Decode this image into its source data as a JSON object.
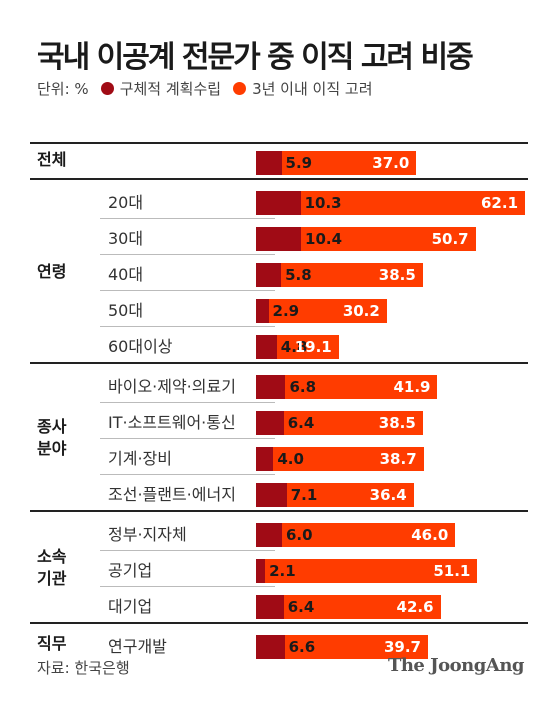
{
  "colors": {
    "series1": "#a00b15",
    "series2": "#ff3c00"
  },
  "chart_data": {
    "type": "bar",
    "orientation": "horizontal",
    "title": "국내 이공계 전문가 중 이직 고려 비중",
    "unit_label": "단위: %",
    "series": [
      {
        "name": "구체적 계획수립",
        "color": "#a00b15"
      },
      {
        "name": "3년 이내 이직 고려",
        "color": "#ff3c00"
      }
    ],
    "groups": [
      {
        "label": "전체",
        "rows": [
          {
            "label": "",
            "v1": 5.9,
            "v2": 37.0,
            "v1_text": "5.9",
            "v2_text": "37.0"
          }
        ]
      },
      {
        "label": "연령",
        "rows": [
          {
            "label": "20대",
            "v1": 10.3,
            "v2": 62.1,
            "v1_text": "10.3",
            "v2_text": "62.1"
          },
          {
            "label": "30대",
            "v1": 10.4,
            "v2": 50.7,
            "v1_text": "10.4",
            "v2_text": "50.7"
          },
          {
            "label": "40대",
            "v1": 5.8,
            "v2": 38.5,
            "v1_text": "5.8",
            "v2_text": "38.5"
          },
          {
            "label": "50대",
            "v1": 2.9,
            "v2": 30.2,
            "v1_text": "2.9",
            "v2_text": "30.2"
          },
          {
            "label": "60대이상",
            "v1": 4.8,
            "v2": 19.1,
            "v1_text": "4.8",
            "v2_text": "19.1"
          }
        ]
      },
      {
        "label": "종사\n분야",
        "rows": [
          {
            "label": "바이오·제약·의료기",
            "v1": 6.8,
            "v2": 41.9,
            "v1_text": "6.8",
            "v2_text": "41.9"
          },
          {
            "label": "IT·소프트웨어·통신",
            "v1": 6.4,
            "v2": 38.5,
            "v1_text": "6.4",
            "v2_text": "38.5"
          },
          {
            "label": "기계·장비",
            "v1": 4.0,
            "v2": 38.7,
            "v1_text": "4.0",
            "v2_text": "38.7"
          },
          {
            "label": "조선·플랜트·에너지",
            "v1": 7.1,
            "v2": 36.4,
            "v1_text": "7.1",
            "v2_text": "36.4"
          }
        ]
      },
      {
        "label": "소속\n기관",
        "rows": [
          {
            "label": "정부·지자체",
            "v1": 6.0,
            "v2": 46.0,
            "v1_text": "6.0",
            "v2_text": "46.0"
          },
          {
            "label": "공기업",
            "v1": 2.1,
            "v2": 51.1,
            "v1_text": "2.1",
            "v2_text": "51.1"
          },
          {
            "label": "대기업",
            "v1": 6.4,
            "v2": 42.6,
            "v1_text": "6.4",
            "v2_text": "42.6"
          }
        ]
      },
      {
        "label": "직무",
        "rows": [
          {
            "label": "연구개발",
            "v1": 6.6,
            "v2": 39.7,
            "v1_text": "6.6",
            "v2_text": "39.7"
          }
        ]
      }
    ]
  },
  "footer": {
    "source": "자료: 한국은행",
    "brand": "The JoongAng"
  }
}
